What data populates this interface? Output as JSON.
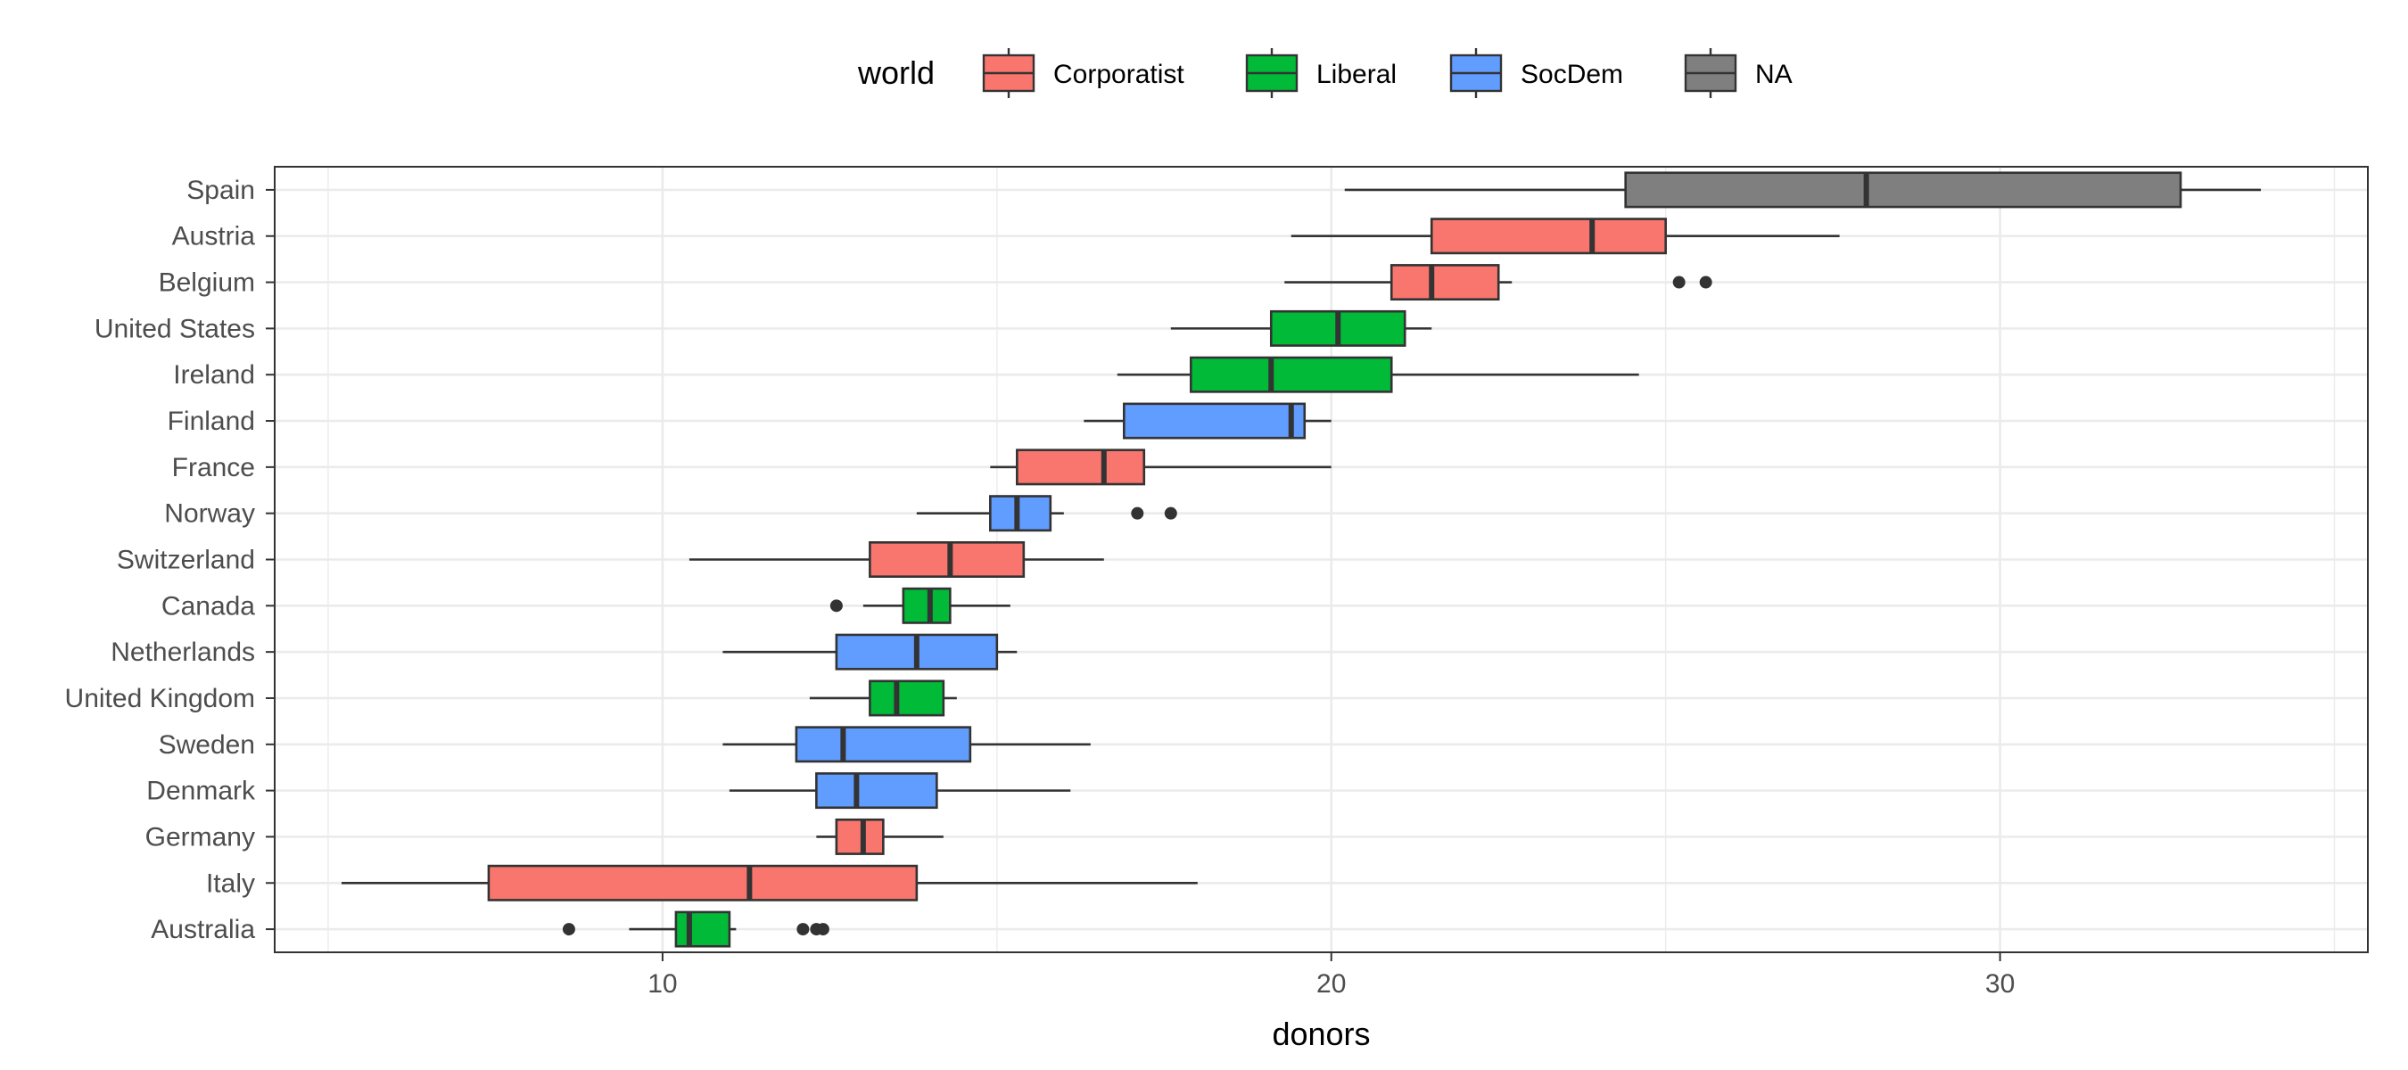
{
  "chart_data": {
    "type": "boxplot",
    "orientation": "horizontal",
    "xlabel": "donors",
    "ylabel": "",
    "xlim": [
      4.2,
      35.5
    ],
    "x_ticks": [
      10,
      20,
      30
    ],
    "grid": true,
    "legend": {
      "title": "world",
      "position": "top",
      "entries": [
        {
          "name": "Corporatist",
          "color": "#F8766D"
        },
        {
          "name": "Liberal",
          "color": "#00BA38"
        },
        {
          "name": "SocDem",
          "color": "#619CFF"
        },
        {
          "name": "NA",
          "color": "#7F7F7F"
        }
      ]
    },
    "categories": [
      "Spain",
      "Austria",
      "Belgium",
      "United States",
      "Ireland",
      "Finland",
      "France",
      "Norway",
      "Switzerland",
      "Canada",
      "Netherlands",
      "United Kingdom",
      "Sweden",
      "Denmark",
      "Germany",
      "Italy",
      "Australia"
    ],
    "boxes": [
      {
        "country": "Spain",
        "world": "NA",
        "whisker_low": 20.2,
        "q1": 24.4,
        "median": 28.0,
        "q3": 32.7,
        "whisker_high": 33.9,
        "outliers": []
      },
      {
        "country": "Austria",
        "world": "Corporatist",
        "whisker_low": 19.4,
        "q1": 21.5,
        "median": 23.9,
        "q3": 25.0,
        "whisker_high": 27.6,
        "outliers": []
      },
      {
        "country": "Belgium",
        "world": "Corporatist",
        "whisker_low": 19.3,
        "q1": 20.9,
        "median": 21.5,
        "q3": 22.5,
        "whisker_high": 22.7,
        "outliers": [
          25.2,
          25.6
        ]
      },
      {
        "country": "United States",
        "world": "Liberal",
        "whisker_low": 17.6,
        "q1": 19.1,
        "median": 20.1,
        "q3": 21.1,
        "whisker_high": 21.5,
        "outliers": []
      },
      {
        "country": "Ireland",
        "world": "Liberal",
        "whisker_low": 16.8,
        "q1": 17.9,
        "median": 19.1,
        "q3": 20.9,
        "whisker_high": 24.6,
        "outliers": []
      },
      {
        "country": "Finland",
        "world": "SocDem",
        "whisker_low": 16.3,
        "q1": 16.9,
        "median": 19.4,
        "q3": 19.6,
        "whisker_high": 20.0,
        "outliers": []
      },
      {
        "country": "France",
        "world": "Corporatist",
        "whisker_low": 14.9,
        "q1": 15.3,
        "median": 16.6,
        "q3": 17.2,
        "whisker_high": 20.0,
        "outliers": []
      },
      {
        "country": "Norway",
        "world": "SocDem",
        "whisker_low": 13.8,
        "q1": 14.9,
        "median": 15.3,
        "q3": 15.8,
        "whisker_high": 16.0,
        "outliers": [
          17.1,
          17.6
        ]
      },
      {
        "country": "Switzerland",
        "world": "Corporatist",
        "whisker_low": 10.4,
        "q1": 13.1,
        "median": 14.3,
        "q3": 15.4,
        "whisker_high": 16.6,
        "outliers": []
      },
      {
        "country": "Canada",
        "world": "Liberal",
        "whisker_low": 13.0,
        "q1": 13.6,
        "median": 14.0,
        "q3": 14.3,
        "whisker_high": 15.2,
        "outliers": [
          12.6
        ]
      },
      {
        "country": "Netherlands",
        "world": "SocDem",
        "whisker_low": 10.9,
        "q1": 12.6,
        "median": 13.8,
        "q3": 15.0,
        "whisker_high": 15.3,
        "outliers": []
      },
      {
        "country": "United Kingdom",
        "world": "Liberal",
        "whisker_low": 12.2,
        "q1": 13.1,
        "median": 13.5,
        "q3": 14.2,
        "whisker_high": 14.4,
        "outliers": []
      },
      {
        "country": "Sweden",
        "world": "SocDem",
        "whisker_low": 10.9,
        "q1": 12.0,
        "median": 12.7,
        "q3": 14.6,
        "whisker_high": 16.4,
        "outliers": []
      },
      {
        "country": "Denmark",
        "world": "SocDem",
        "whisker_low": 11.0,
        "q1": 12.3,
        "median": 12.9,
        "q3": 14.1,
        "whisker_high": 16.1,
        "outliers": []
      },
      {
        "country": "Germany",
        "world": "Corporatist",
        "whisker_low": 12.3,
        "q1": 12.6,
        "median": 13.0,
        "q3": 13.3,
        "whisker_high": 14.2,
        "outliers": []
      },
      {
        "country": "Italy",
        "world": "Corporatist",
        "whisker_low": 5.2,
        "q1": 7.4,
        "median": 11.3,
        "q3": 13.8,
        "whisker_high": 18.0,
        "outliers": []
      },
      {
        "country": "Australia",
        "world": "Liberal",
        "whisker_low": 9.5,
        "q1": 10.2,
        "median": 10.4,
        "q3": 11.0,
        "whisker_high": 11.1,
        "outliers": [
          8.6,
          12.1,
          12.3,
          12.4
        ]
      }
    ]
  }
}
